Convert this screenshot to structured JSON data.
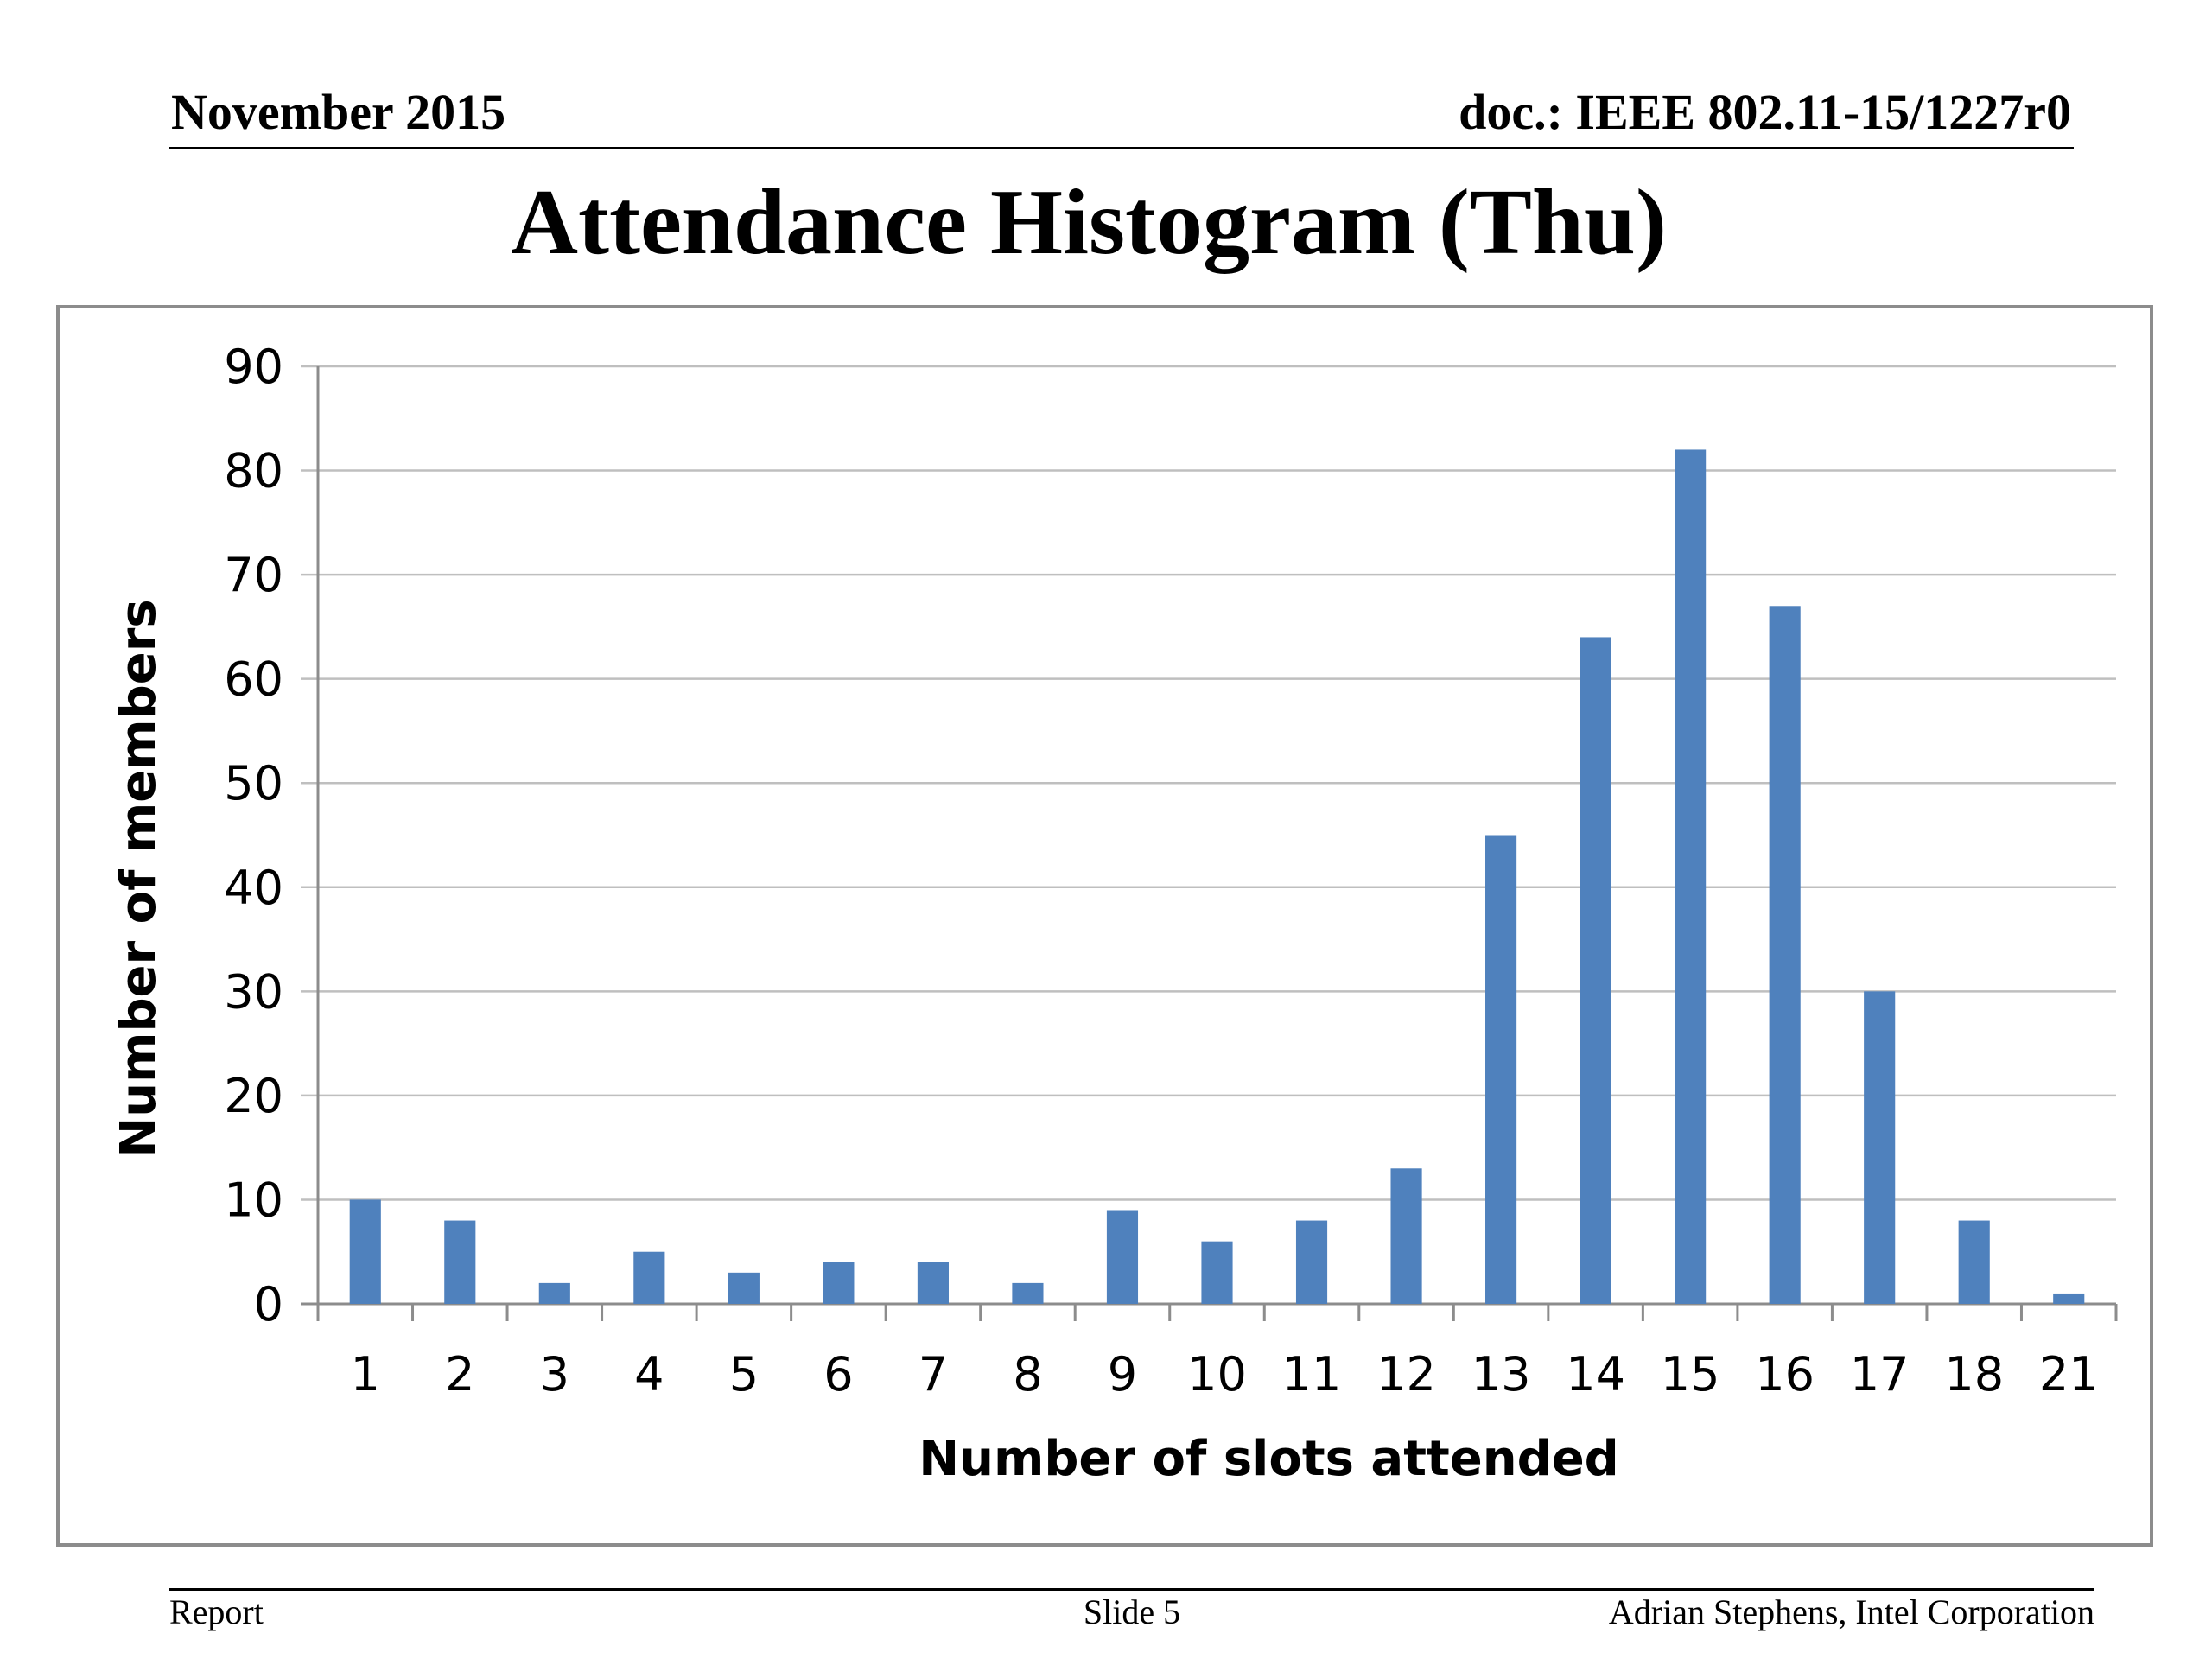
{
  "header": {
    "left": "November 2015",
    "right": "doc.: IEEE 802.11-15/1227r0"
  },
  "title": "Attendance Histogram (Thu)",
  "footer": {
    "left": "Report",
    "center": "Slide 5",
    "right": "Adrian Stephens, Intel Corporation"
  },
  "colors": {
    "bar": "#4f81bd",
    "gridline": "#bfbfbf",
    "axis": "#8c8c8c"
  },
  "chart_data": {
    "type": "bar",
    "title": "",
    "xlabel": "Number of slots attended",
    "ylabel": "Number of members",
    "categories": [
      "1",
      "2",
      "3",
      "4",
      "5",
      "6",
      "7",
      "8",
      "9",
      "10",
      "11",
      "12",
      "13",
      "14",
      "15",
      "16",
      "17",
      "18",
      "21"
    ],
    "values": [
      10,
      8,
      2,
      5,
      3,
      4,
      4,
      2,
      9,
      6,
      8,
      13,
      45,
      64,
      82,
      67,
      30,
      8,
      1
    ],
    "ylim": [
      0,
      90
    ],
    "yticks": [
      "0",
      "10",
      "20",
      "30",
      "40",
      "50",
      "60",
      "70",
      "80",
      "90"
    ],
    "grid": true,
    "legend": "none"
  }
}
